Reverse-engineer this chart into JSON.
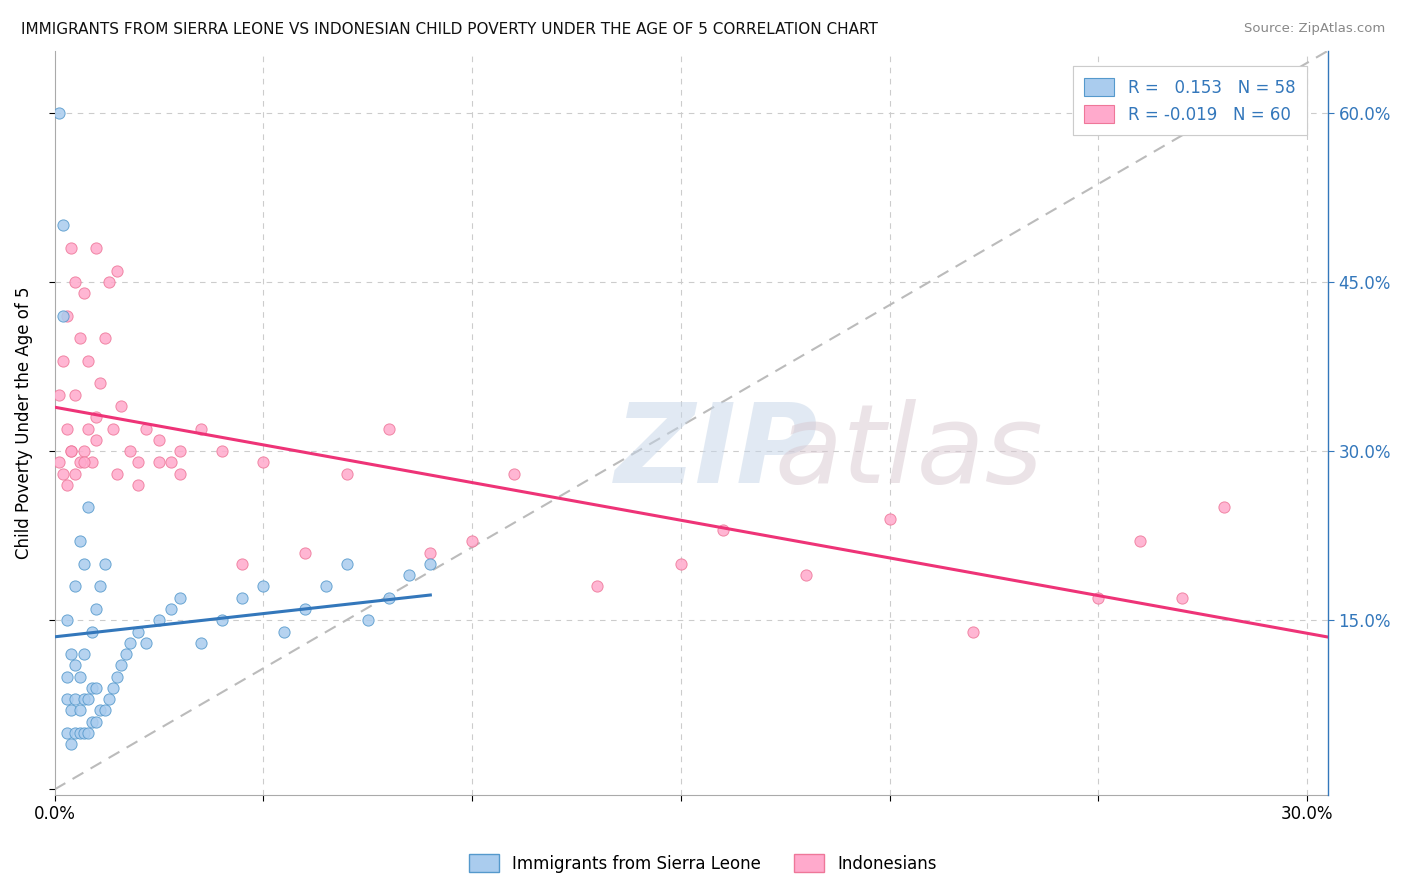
{
  "title": "IMMIGRANTS FROM SIERRA LEONE VS INDONESIAN CHILD POVERTY UNDER THE AGE OF 5 CORRELATION CHART",
  "source": "Source: ZipAtlas.com",
  "ylabel": "Child Poverty Under the Age of 5",
  "xlim": [
    0.0,
    0.305
  ],
  "ylim": [
    -0.005,
    0.655
  ],
  "color_blue_fill": "#aaccee",
  "color_blue_edge": "#5599cc",
  "color_pink_fill": "#ffaacc",
  "color_pink_edge": "#ee7799",
  "color_blue_line": "#3377bb",
  "color_pink_line": "#ee3377",
  "color_dashed": "#bbbbbb",
  "color_grid": "#cccccc",
  "sl_x": [
    0.001,
    0.002,
    0.002,
    0.003,
    0.003,
    0.003,
    0.003,
    0.004,
    0.004,
    0.004,
    0.005,
    0.005,
    0.005,
    0.005,
    0.006,
    0.006,
    0.006,
    0.006,
    0.007,
    0.007,
    0.007,
    0.007,
    0.008,
    0.008,
    0.008,
    0.009,
    0.009,
    0.009,
    0.01,
    0.01,
    0.01,
    0.011,
    0.011,
    0.012,
    0.012,
    0.013,
    0.014,
    0.015,
    0.016,
    0.017,
    0.018,
    0.02,
    0.022,
    0.025,
    0.028,
    0.03,
    0.035,
    0.04,
    0.045,
    0.05,
    0.055,
    0.06,
    0.065,
    0.07,
    0.075,
    0.08,
    0.085,
    0.09
  ],
  "sl_y": [
    0.6,
    0.5,
    0.42,
    0.05,
    0.08,
    0.1,
    0.15,
    0.04,
    0.07,
    0.12,
    0.05,
    0.08,
    0.11,
    0.18,
    0.05,
    0.07,
    0.1,
    0.22,
    0.05,
    0.08,
    0.12,
    0.2,
    0.05,
    0.08,
    0.25,
    0.06,
    0.09,
    0.14,
    0.06,
    0.09,
    0.16,
    0.07,
    0.18,
    0.07,
    0.2,
    0.08,
    0.09,
    0.1,
    0.11,
    0.12,
    0.13,
    0.14,
    0.13,
    0.15,
    0.16,
    0.17,
    0.13,
    0.15,
    0.17,
    0.18,
    0.14,
    0.16,
    0.18,
    0.2,
    0.15,
    0.17,
    0.19,
    0.2
  ],
  "indo_x": [
    0.001,
    0.001,
    0.002,
    0.002,
    0.003,
    0.003,
    0.003,
    0.004,
    0.004,
    0.005,
    0.005,
    0.005,
    0.006,
    0.006,
    0.007,
    0.007,
    0.008,
    0.008,
    0.009,
    0.01,
    0.01,
    0.011,
    0.012,
    0.013,
    0.014,
    0.015,
    0.016,
    0.018,
    0.02,
    0.022,
    0.025,
    0.028,
    0.03,
    0.035,
    0.04,
    0.045,
    0.05,
    0.06,
    0.07,
    0.08,
    0.09,
    0.1,
    0.11,
    0.13,
    0.15,
    0.16,
    0.18,
    0.2,
    0.22,
    0.25,
    0.26,
    0.27,
    0.28,
    0.004,
    0.007,
    0.01,
    0.015,
    0.02,
    0.025,
    0.03
  ],
  "indo_y": [
    0.29,
    0.35,
    0.28,
    0.38,
    0.27,
    0.32,
    0.42,
    0.3,
    0.48,
    0.28,
    0.35,
    0.45,
    0.29,
    0.4,
    0.3,
    0.44,
    0.32,
    0.38,
    0.29,
    0.33,
    0.48,
    0.36,
    0.4,
    0.45,
    0.32,
    0.46,
    0.34,
    0.3,
    0.29,
    0.32,
    0.31,
    0.29,
    0.28,
    0.32,
    0.3,
    0.2,
    0.29,
    0.21,
    0.28,
    0.32,
    0.21,
    0.22,
    0.28,
    0.18,
    0.2,
    0.23,
    0.19,
    0.24,
    0.14,
    0.17,
    0.22,
    0.17,
    0.25,
    0.3,
    0.29,
    0.31,
    0.28,
    0.27,
    0.29,
    0.3
  ]
}
